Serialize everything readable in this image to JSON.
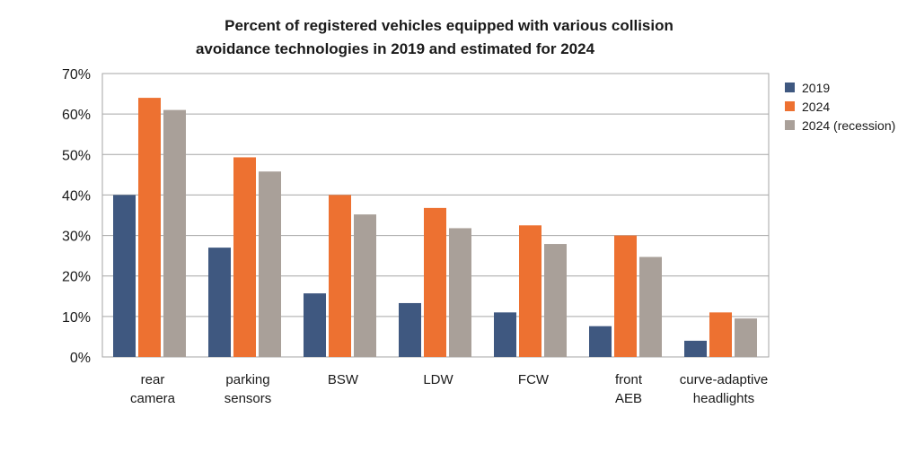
{
  "chart_data": {
    "type": "bar",
    "title_line1": "Percent of registered vehicles equipped with various collision",
    "title_line2": "avoidance technologies in 2019 and estimated for 2024",
    "categories": [
      [
        "rear",
        "camera"
      ],
      [
        "parking",
        "sensors"
      ],
      [
        "BSW"
      ],
      [
        "LDW"
      ],
      [
        "FCW"
      ],
      [
        "front",
        "AEB"
      ],
      [
        "curve-adaptive",
        "headlights"
      ]
    ],
    "series": [
      {
        "name": "2019",
        "color": "#3f5880",
        "values": [
          40,
          27,
          15.7,
          13.3,
          11,
          7.6,
          4
        ]
      },
      {
        "name": "2024",
        "color": "#ed7131",
        "values": [
          64,
          49.3,
          40,
          36.8,
          32.5,
          30,
          11
        ]
      },
      {
        "name": "2024 (recession)",
        "color": "#a9a099",
        "values": [
          61,
          45.8,
          35.2,
          31.8,
          27.9,
          24.7,
          9.5
        ]
      }
    ],
    "yticks": [
      "0%",
      "10%",
      "20%",
      "30%",
      "40%",
      "50%",
      "60%",
      "70%"
    ],
    "ylim": [
      0,
      70
    ],
    "grid": true,
    "legend_position": "right"
  }
}
